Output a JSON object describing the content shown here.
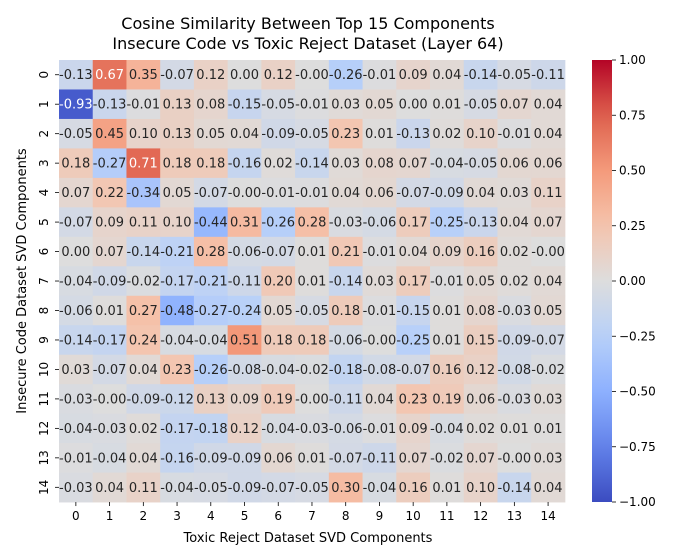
{
  "chart_data": {
    "type": "heatmap",
    "title_lines": [
      "Cosine Similarity Between Top 15 Components",
      "Insecure Code vs Toxic Reject Dataset (Layer 64)"
    ],
    "xlabel": "Toxic Reject Dataset SVD Components",
    "ylabel": "Insecure Code Dataset SVD Components",
    "x_ticks": [
      "0",
      "1",
      "2",
      "3",
      "4",
      "5",
      "6",
      "7",
      "8",
      "9",
      "10",
      "11",
      "12",
      "13",
      "14"
    ],
    "y_ticks": [
      "0",
      "1",
      "2",
      "3",
      "4",
      "5",
      "6",
      "7",
      "8",
      "9",
      "10",
      "11",
      "12",
      "13",
      "14"
    ],
    "colormap": "coolwarm",
    "vmin": -1.0,
    "vmax": 1.0,
    "colorbar_ticks": [
      "1.00",
      "0.75",
      "0.50",
      "0.25",
      "0.00",
      "−0.25",
      "−0.50",
      "−0.75",
      "−1.00"
    ],
    "colorbar_tick_values": [
      1.0,
      0.75,
      0.5,
      0.25,
      0.0,
      -0.25,
      -0.5,
      -0.75,
      -1.0
    ],
    "values": [
      [
        -0.13,
        0.67,
        0.35,
        -0.07,
        0.12,
        0.0,
        0.12,
        -0.0,
        -0.26,
        -0.01,
        0.09,
        0.04,
        -0.14,
        -0.05,
        -0.11
      ],
      [
        -0.93,
        -0.13,
        -0.01,
        0.13,
        0.08,
        -0.15,
        -0.05,
        -0.01,
        0.03,
        0.05,
        0.0,
        0.01,
        -0.05,
        0.07,
        0.04
      ],
      [
        -0.05,
        0.45,
        0.1,
        0.13,
        0.05,
        0.04,
        -0.09,
        -0.05,
        0.23,
        0.01,
        -0.13,
        0.02,
        0.1,
        -0.01,
        0.04
      ],
      [
        0.18,
        -0.27,
        0.71,
        0.18,
        0.18,
        -0.16,
        0.02,
        -0.14,
        0.03,
        0.08,
        0.07,
        -0.04,
        -0.05,
        0.06,
        0.06
      ],
      [
        0.07,
        0.22,
        -0.34,
        0.05,
        -0.07,
        -0.0,
        -0.01,
        -0.01,
        0.04,
        0.06,
        -0.07,
        -0.09,
        0.04,
        0.03,
        0.11
      ],
      [
        -0.07,
        0.09,
        0.11,
        0.1,
        -0.44,
        0.31,
        -0.26,
        0.28,
        -0.03,
        -0.06,
        0.17,
        -0.25,
        -0.13,
        0.04,
        0.07
      ],
      [
        0.0,
        0.07,
        -0.14,
        -0.21,
        0.28,
        -0.06,
        -0.07,
        0.01,
        0.21,
        -0.01,
        0.04,
        0.09,
        0.16,
        0.02,
        -0.0
      ],
      [
        -0.04,
        -0.09,
        -0.02,
        -0.17,
        -0.21,
        -0.11,
        0.2,
        0.01,
        -0.14,
        0.03,
        0.17,
        -0.01,
        0.05,
        0.02,
        0.04
      ],
      [
        -0.06,
        0.01,
        0.27,
        -0.48,
        -0.27,
        -0.24,
        0.05,
        -0.05,
        0.18,
        -0.01,
        -0.15,
        0.01,
        0.08,
        -0.03,
        0.05
      ],
      [
        -0.14,
        -0.17,
        0.24,
        -0.04,
        -0.04,
        0.51,
        0.18,
        0.18,
        -0.06,
        -0.0,
        -0.25,
        0.01,
        0.15,
        -0.09,
        -0.07
      ],
      [
        0.03,
        -0.07,
        0.04,
        0.23,
        -0.26,
        -0.08,
        -0.04,
        -0.02,
        -0.18,
        -0.08,
        -0.07,
        0.16,
        0.12,
        -0.08,
        -0.02
      ],
      [
        -0.03,
        -0.0,
        -0.09,
        -0.12,
        0.13,
        0.09,
        0.19,
        -0.0,
        -0.11,
        0.04,
        0.23,
        0.19,
        0.06,
        -0.03,
        0.03
      ],
      [
        -0.04,
        -0.03,
        0.02,
        -0.17,
        -0.18,
        0.12,
        -0.04,
        -0.03,
        -0.06,
        -0.01,
        0.09,
        -0.04,
        0.02,
        0.01,
        0.01
      ],
      [
        -0.01,
        -0.04,
        0.04,
        -0.16,
        -0.09,
        -0.09,
        0.06,
        0.01,
        -0.07,
        -0.11,
        0.07,
        -0.02,
        0.07,
        -0.0,
        0.03
      ],
      [
        -0.03,
        0.04,
        0.11,
        -0.04,
        -0.05,
        -0.09,
        -0.07,
        -0.05,
        0.3,
        -0.04,
        0.16,
        0.01,
        0.1,
        -0.14,
        0.04
      ]
    ],
    "cell_labels": [
      [
        "-0.13",
        "0.67",
        "0.35",
        "-0.07",
        "0.12",
        "0.00",
        "0.12",
        "-0.00",
        "-0.26",
        "-0.01",
        "0.09",
        "0.04",
        "-0.14",
        "-0.05",
        "-0.11"
      ],
      [
        "-0.93",
        "-0.13",
        "-0.01",
        "0.13",
        "0.08",
        "-0.15",
        "-0.05",
        "-0.01",
        "0.03",
        "0.05",
        "0.00",
        "0.01",
        "-0.05",
        "0.07",
        "0.04"
      ],
      [
        "-0.05",
        "0.45",
        "0.10",
        "0.13",
        "0.05",
        "0.04",
        "-0.09",
        "-0.05",
        "0.23",
        "0.01",
        "-0.13",
        "0.02",
        "0.10",
        "-0.01",
        "0.04"
      ],
      [
        "0.18",
        "-0.27",
        "0.71",
        "0.18",
        "0.18",
        "-0.16",
        "0.02",
        "-0.14",
        "0.03",
        "0.08",
        "0.07",
        "-0.04",
        "-0.05",
        "0.06",
        "0.06"
      ],
      [
        "0.07",
        "0.22",
        "-0.34",
        "0.05",
        "-0.07",
        "-0.00",
        "-0.01",
        "-0.01",
        "0.04",
        "0.06",
        "-0.07",
        "-0.09",
        "0.04",
        "0.03",
        "0.11"
      ],
      [
        "-0.07",
        "0.09",
        "0.11",
        "0.10",
        "-0.44",
        "0.31",
        "-0.26",
        "0.28",
        "-0.03",
        "-0.06",
        "0.17",
        "-0.25",
        "-0.13",
        "0.04",
        "0.07"
      ],
      [
        "0.00",
        "0.07",
        "-0.14",
        "-0.21",
        "0.28",
        "-0.06",
        "-0.07",
        "0.01",
        "0.21",
        "-0.01",
        "0.04",
        "0.09",
        "0.16",
        "0.02",
        "-0.00"
      ],
      [
        "-0.04",
        "-0.09",
        "-0.02",
        "-0.17",
        "-0.21",
        "-0.11",
        "0.20",
        "0.01",
        "-0.14",
        "0.03",
        "0.17",
        "-0.01",
        "0.05",
        "0.02",
        "0.04"
      ],
      [
        "-0.06",
        "0.01",
        "0.27",
        "-0.48",
        "-0.27",
        "-0.24",
        "0.05",
        "-0.05",
        "0.18",
        "-0.01",
        "-0.15",
        "0.01",
        "0.08",
        "-0.03",
        "0.05"
      ],
      [
        "-0.14",
        "-0.17",
        "0.24",
        "-0.04",
        "-0.04",
        "0.51",
        "0.18",
        "0.18",
        "-0.06",
        "-0.00",
        "-0.25",
        "0.01",
        "0.15",
        "-0.09",
        "-0.07"
      ],
      [
        "0.03",
        "-0.07",
        "0.04",
        "0.23",
        "-0.26",
        "-0.08",
        "-0.04",
        "-0.02",
        "-0.18",
        "-0.08",
        "-0.07",
        "0.16",
        "0.12",
        "-0.08",
        "-0.02"
      ],
      [
        "-0.03",
        "-0.00",
        "-0.09",
        "-0.12",
        "0.13",
        "0.09",
        "0.19",
        "-0.00",
        "-0.11",
        "0.04",
        "0.23",
        "0.19",
        "0.06",
        "-0.03",
        "0.03"
      ],
      [
        "-0.04",
        "-0.03",
        "0.02",
        "-0.17",
        "-0.18",
        "0.12",
        "-0.04",
        "-0.03",
        "-0.06",
        "-0.01",
        "0.09",
        "-0.04",
        "0.02",
        "0.01",
        "0.01"
      ],
      [
        "-0.01",
        "-0.04",
        "0.04",
        "-0.16",
        "-0.09",
        "-0.09",
        "0.06",
        "0.01",
        "-0.07",
        "-0.11",
        "0.07",
        "-0.02",
        "0.07",
        "-0.00",
        "0.03"
      ],
      [
        "-0.03",
        "0.04",
        "0.11",
        "-0.04",
        "-0.05",
        "-0.09",
        "-0.07",
        "-0.05",
        "0.30",
        "-0.04",
        "0.16",
        "0.01",
        "0.10",
        "-0.14",
        "0.04"
      ]
    ]
  }
}
